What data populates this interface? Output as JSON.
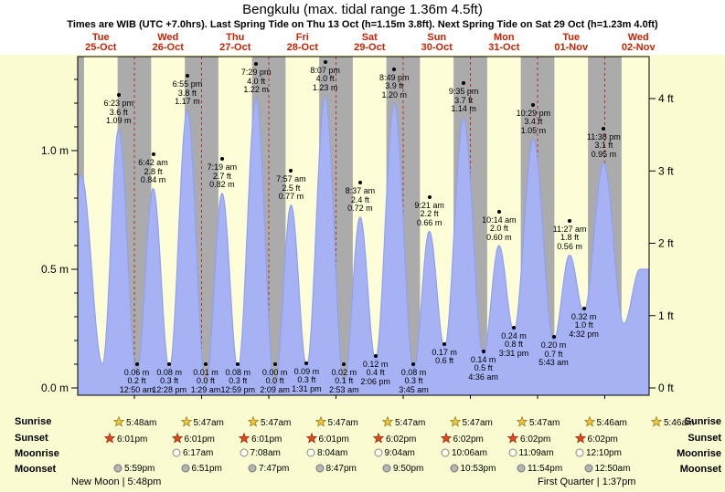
{
  "title": "Bengkulu (max. tidal range 1.36m 4.5ft)",
  "subtitle": "Times are WIB (UTC +7.0hrs). Last Spring Tide on Thu 13 Oct (h=1.15m 3.8ft). Next Spring Tide on Sat 29 Oct (h=1.23m 4.0ft)",
  "colors": {
    "page_bg": "#fbfbd2",
    "header_bg": "#ffffff",
    "plot_day": "#fdfdd8",
    "plot_night": "#ababab",
    "tide_fill": "#a6b2f4",
    "tide_stroke": "#8fa0ef",
    "grid_red": "#b03030",
    "day_label_red": "#cc2200",
    "sunrise_star": "#f2c238",
    "sunset_star": "#e2491f",
    "moonrise_fill": "#fffff2",
    "moonset_fill": "#b5b5b5"
  },
  "chart_data": {
    "type": "area",
    "title": "Bengkulu tide heights",
    "x_axis": {
      "unit": "days",
      "start_hour": 3.7,
      "end_hour": 207.8
    },
    "y_axis_left": {
      "values": [
        0,
        0.5,
        1.0
      ],
      "labels": [
        "0.0 m",
        "0.5 m",
        "1.0 m"
      ]
    },
    "y_axis_right": {
      "values": [
        0,
        1,
        2,
        3,
        4
      ],
      "labels": [
        "0 ft",
        "1 ft",
        "2 ft",
        "3 ft",
        "4 ft"
      ]
    },
    "days": [
      {
        "dow": "Tue",
        "date": "25-Oct"
      },
      {
        "dow": "Wed",
        "date": "26-Oct"
      },
      {
        "dow": "Thu",
        "date": "27-Oct"
      },
      {
        "dow": "Fri",
        "date": "28-Oct"
      },
      {
        "dow": "Sat",
        "date": "29-Oct"
      },
      {
        "dow": "Sun",
        "date": "30-Oct"
      },
      {
        "dow": "Mon",
        "date": "31-Oct"
      },
      {
        "dow": "Tue",
        "date": "01-Nov"
      },
      {
        "dow": "Wed",
        "date": "02-Nov"
      }
    ],
    "tide_events": [
      {
        "type": "low",
        "t": -1.3,
        "h": 0.08
      },
      {
        "type": "high",
        "t": 4.9,
        "h": 0.9
      },
      {
        "type": "low",
        "t": 12.6,
        "h": 0.1
      },
      {
        "type": "high",
        "t": 18.38,
        "h": 1.09,
        "time": "6:23 pm",
        "ft": "3.6 ft",
        "m": "1.09 m"
      },
      {
        "type": "low",
        "t": 24.83,
        "h": 0.06,
        "time": "12:50 am",
        "ft": "0.2 ft",
        "m": "0.06 m"
      },
      {
        "type": "high",
        "t": 30.7,
        "h": 0.84,
        "time": "6:42 am",
        "ft": "2.8 ft",
        "m": "0.84 m"
      },
      {
        "type": "low",
        "t": 36.47,
        "h": 0.08,
        "time": "12:28 pm",
        "ft": "0.3 ft",
        "m": "0.08 m"
      },
      {
        "type": "high",
        "t": 42.92,
        "h": 1.17,
        "time": "6:55 pm",
        "ft": "3.8 ft",
        "m": "1.17 m"
      },
      {
        "type": "low",
        "t": 49.48,
        "h": 0.01,
        "time": "1:29 am",
        "ft": "0.0 ft",
        "m": "0.01 m"
      },
      {
        "type": "high",
        "t": 55.32,
        "h": 0.82,
        "time": "7:19 am",
        "ft": "2.7 ft",
        "m": "0.82 m"
      },
      {
        "type": "low",
        "t": 60.98,
        "h": 0.08,
        "time": "12:59 pm",
        "ft": "0.3 ft",
        "m": "0.08 m"
      },
      {
        "type": "high",
        "t": 67.48,
        "h": 1.22,
        "time": "7:29 pm",
        "ft": "4.0 ft",
        "m": "1.22 m"
      },
      {
        "type": "low",
        "t": 74.15,
        "h": 0.0,
        "time": "2:09 am",
        "ft": "0.0 ft",
        "m": "0.00 m"
      },
      {
        "type": "high",
        "t": 79.95,
        "h": 0.77,
        "time": "7:57 am",
        "ft": "2.5 ft",
        "m": "0.77 m"
      },
      {
        "type": "low",
        "t": 85.52,
        "h": 0.09,
        "time": "1:31 pm",
        "ft": "0.3 ft",
        "m": "0.09 m"
      },
      {
        "type": "high",
        "t": 92.12,
        "h": 1.23,
        "time": "8:07 pm",
        "ft": "4.0 ft",
        "m": "1.23 m"
      },
      {
        "type": "low",
        "t": 98.88,
        "h": 0.02,
        "time": "2:53 am",
        "ft": "0.1 ft",
        "m": "0.02 m"
      },
      {
        "type": "high",
        "t": 104.62,
        "h": 0.72,
        "time": "8:37 am",
        "ft": "2.4 ft",
        "m": "0.72 m"
      },
      {
        "type": "low",
        "t": 110.1,
        "h": 0.12,
        "time": "2:06 pm",
        "ft": "0.4 ft",
        "m": "0.12 m"
      },
      {
        "type": "high",
        "t": 116.82,
        "h": 1.2,
        "time": "8:49 pm",
        "ft": "3.9 ft",
        "m": "1.20 m"
      },
      {
        "type": "low",
        "t": 123.75,
        "h": 0.08,
        "time": "3:45 am",
        "ft": "0.3 ft",
        "m": "0.08 m"
      },
      {
        "type": "high",
        "t": 129.35,
        "h": 0.66,
        "time": "9:21 am",
        "ft": "2.2 ft",
        "m": "0.66 m"
      },
      {
        "type": "low",
        "t": 134.75,
        "h": 0.17,
        "ft": "0.6 ft",
        "m": "0.17 m"
      },
      {
        "type": "high",
        "t": 141.58,
        "h": 1.14,
        "time": "9:35 pm",
        "ft": "3.7 ft",
        "m": "1.14 m"
      },
      {
        "type": "low",
        "t": 148.6,
        "h": 0.14,
        "time": "4:36 am",
        "ft": "0.5 ft",
        "m": "0.14 m"
      },
      {
        "type": "high",
        "t": 154.23,
        "h": 0.6,
        "time": "10:14 am",
        "ft": "2.0 ft",
        "m": "0.60 m"
      },
      {
        "type": "low",
        "t": 159.52,
        "h": 0.24,
        "time": "3:31 pm",
        "ft": "0.8 ft",
        "m": "0.24 m"
      },
      {
        "type": "high",
        "t": 166.48,
        "h": 1.05,
        "time": "10:29 pm",
        "ft": "3.4 ft",
        "m": "1.05 m"
      },
      {
        "type": "low",
        "t": 173.72,
        "h": 0.2,
        "time": "5:43 am",
        "ft": "0.7 ft",
        "m": "0.20 m"
      },
      {
        "type": "high",
        "t": 179.45,
        "h": 0.56,
        "time": "11:27 am",
        "ft": "1.8 ft",
        "m": "0.56 m"
      },
      {
        "type": "low",
        "t": 184.53,
        "h": 0.32,
        "time": "4:32 pm",
        "ft": "1.0 ft",
        "m": "0.32 m"
      },
      {
        "type": "high",
        "t": 191.63,
        "h": 0.95,
        "time": "11:38 pm",
        "ft": "3.1 ft",
        "m": "0.95 m"
      },
      {
        "type": "low",
        "t": 198.8,
        "h": 0.27
      },
      {
        "type": "high",
        "t": 204.6,
        "h": 0.5
      }
    ]
  },
  "astro": {
    "rows": [
      {
        "label": "Sunrise",
        "times": [
          "5:48am",
          "5:47am",
          "5:47am",
          "5:47am",
          "5:47am",
          "5:47am",
          "5:47am",
          "5:46am",
          "5:46am"
        ]
      },
      {
        "label": "Sunset",
        "times": [
          "6:01pm",
          "6:01pm",
          "6:01pm",
          "6:01pm",
          "6:02pm",
          "6:02pm",
          "6:02pm",
          "6:02pm"
        ]
      },
      {
        "label": "Moonrise",
        "times": [
          "6:17am",
          "7:08am",
          "8:04am",
          "9:04am",
          "10:06am",
          "11:09am",
          "12:10pm"
        ]
      },
      {
        "label": "Moonset",
        "times": [
          "5:59pm",
          "6:51pm",
          "7:47pm",
          "8:47pm",
          "9:50pm",
          "10:53pm",
          "11:54pm",
          "12:50am"
        ]
      }
    ],
    "footers": [
      "New Moon | 5:48pm",
      "First Quarter | 1:37pm"
    ]
  }
}
